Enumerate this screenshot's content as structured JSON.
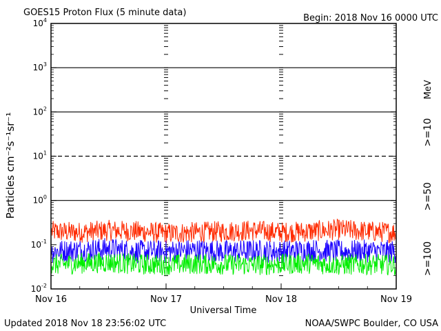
{
  "header": {
    "title": "GOES15 Proton Flux (5 minute data)",
    "begin": "Begin: 2018 Nov 16 0000 UTC"
  },
  "footer": {
    "updated": "Updated 2018 Nov 18 23:56:02 UTC",
    "credit": "NOAA/SWPC Boulder, CO USA"
  },
  "chart_data": {
    "type": "line",
    "title": "GOES15 Proton Flux (5 minute data)",
    "xlabel": "Universal Time",
    "ylabel": "Particles cm⁻²s⁻¹sr⁻¹",
    "y_scale": "log",
    "ylim": [
      0.01,
      10000
    ],
    "y_ticks": [
      {
        "base": "10",
        "exp": "-2",
        "value": 0.01
      },
      {
        "base": "10",
        "exp": "-1",
        "value": 0.1
      },
      {
        "base": "10",
        "exp": "0",
        "value": 1
      },
      {
        "base": "10",
        "exp": "1",
        "value": 10
      },
      {
        "base": "10",
        "exp": "2",
        "value": 100
      },
      {
        "base": "10",
        "exp": "3",
        "value": 1000
      },
      {
        "base": "10",
        "exp": "4",
        "value": 10000
      }
    ],
    "x_ticks": [
      "Nov 16",
      "Nov 17",
      "Nov 18",
      "Nov 19"
    ],
    "xlim": [
      "2018-11-16",
      "2018-11-19"
    ],
    "threshold_lines": [
      {
        "value": 1,
        "style": "solid"
      },
      {
        "value": 10,
        "style": "dashed"
      },
      {
        "value": 100,
        "style": "solid"
      },
      {
        "value": 1000,
        "style": "solid"
      }
    ],
    "series": [
      {
        "name": ">=10",
        "color": "#ff2a00",
        "x": [
          "2018-11-16T00:00",
          "2018-11-16T06:00",
          "2018-11-16T12:00",
          "2018-11-16T18:00",
          "2018-11-17T00:00",
          "2018-11-17T06:00",
          "2018-11-17T12:00",
          "2018-11-17T18:00",
          "2018-11-18T00:00",
          "2018-11-18T06:00",
          "2018-11-18T12:00",
          "2018-11-18T18:00",
          "2018-11-18T23:55"
        ],
        "values": [
          0.2,
          0.19,
          0.21,
          0.2,
          0.18,
          0.19,
          0.2,
          0.21,
          0.19,
          0.2,
          0.22,
          0.2,
          0.19
        ]
      },
      {
        "name": ">=50",
        "color": "#1a00ff",
        "x": [
          "2018-11-16T00:00",
          "2018-11-16T06:00",
          "2018-11-16T12:00",
          "2018-11-16T18:00",
          "2018-11-17T00:00",
          "2018-11-17T06:00",
          "2018-11-17T12:00",
          "2018-11-17T18:00",
          "2018-11-18T00:00",
          "2018-11-18T06:00",
          "2018-11-18T12:00",
          "2018-11-18T18:00",
          "2018-11-18T23:55"
        ],
        "values": [
          0.07,
          0.075,
          0.08,
          0.07,
          0.07,
          0.075,
          0.07,
          0.072,
          0.07,
          0.075,
          0.07,
          0.072,
          0.07
        ]
      },
      {
        "name": ">=100",
        "color": "#00ee00",
        "x": [
          "2018-11-16T00:00",
          "2018-11-16T06:00",
          "2018-11-16T12:00",
          "2018-11-16T18:00",
          "2018-11-17T00:00",
          "2018-11-17T06:00",
          "2018-11-17T12:00",
          "2018-11-17T18:00",
          "2018-11-18T00:00",
          "2018-11-18T06:00",
          "2018-11-18T12:00",
          "2018-11-18T18:00",
          "2018-11-18T23:55"
        ],
        "values": [
          0.035,
          0.038,
          0.04,
          0.036,
          0.035,
          0.037,
          0.036,
          0.035,
          0.036,
          0.038,
          0.035,
          0.036,
          0.035
        ]
      }
    ],
    "legend": {
      "unit": "MeV",
      "placement": "right"
    }
  }
}
